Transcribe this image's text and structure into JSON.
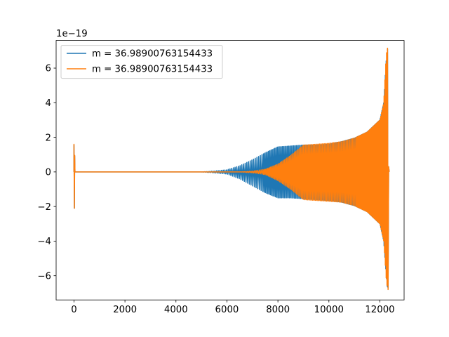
{
  "chart_data": {
    "type": "line",
    "title": "",
    "xlabel": "",
    "ylabel": "",
    "y_offset_label": "1e−19",
    "xlim": [
      -700,
      12950
    ],
    "ylim": [
      -7.4,
      7.6
    ],
    "xticks": [
      0,
      2000,
      4000,
      6000,
      8000,
      10000,
      12000
    ],
    "xtick_labels": [
      "0",
      "2000",
      "4000",
      "6000",
      "8000",
      "10000",
      "12000"
    ],
    "yticks": [
      -6,
      -4,
      -2,
      0,
      2,
      4,
      6
    ],
    "ytick_labels": [
      "−6",
      "−4",
      "−2",
      "0",
      "2",
      "4",
      "6"
    ],
    "grid": false,
    "legend_position": "top-left",
    "series": [
      {
        "name": "m = 36.98900763154433",
        "color": "#1f77b4",
        "envelope": {
          "x": [
            0,
            5000,
            5500,
            6000,
            6500,
            7000,
            7500,
            8000,
            8500,
            9000,
            9500,
            10000,
            10500,
            11000,
            11500,
            12000,
            12150,
            12250,
            12300
          ],
          "y_max": [
            0.0,
            0.0,
            0.05,
            0.12,
            0.35,
            0.7,
            1.1,
            1.45,
            1.5,
            1.55,
            1.55,
            1.6,
            1.75,
            1.95,
            2.3,
            3.0,
            4.0,
            6.5,
            7.1
          ],
          "y_min": [
            0.0,
            0.0,
            -0.05,
            -0.12,
            -0.4,
            -0.8,
            -1.2,
            -1.5,
            -1.5,
            -1.55,
            -1.6,
            -1.65,
            -1.75,
            -1.95,
            -2.3,
            -3.0,
            -4.0,
            -6.0,
            -6.7
          ]
        },
        "initial_spike": {
          "x": 0,
          "y_max": 1.55,
          "y_min": -2.1
        }
      },
      {
        "name": "m = 36.98900763154433",
        "color": "#ff7f0e",
        "envelope": {
          "x": [
            0,
            6500,
            7000,
            7500,
            8000,
            8500,
            9000,
            9500,
            10000,
            10500,
            11000,
            11500,
            12000,
            12150,
            12250,
            12300
          ],
          "y_max": [
            0.0,
            0.0,
            0.05,
            0.15,
            0.45,
            0.95,
            1.55,
            1.6,
            1.65,
            1.75,
            1.95,
            2.3,
            3.0,
            4.0,
            6.8,
            7.15
          ],
          "y_min": [
            0.0,
            0.0,
            -0.05,
            -0.15,
            -0.5,
            -1.0,
            -1.6,
            -1.65,
            -1.7,
            -1.75,
            -1.95,
            -2.3,
            -3.0,
            -4.0,
            -6.2,
            -6.8
          ]
        },
        "initial_spike": {
          "x": 0,
          "y_max": 1.6,
          "y_min": -2.1
        }
      }
    ]
  }
}
